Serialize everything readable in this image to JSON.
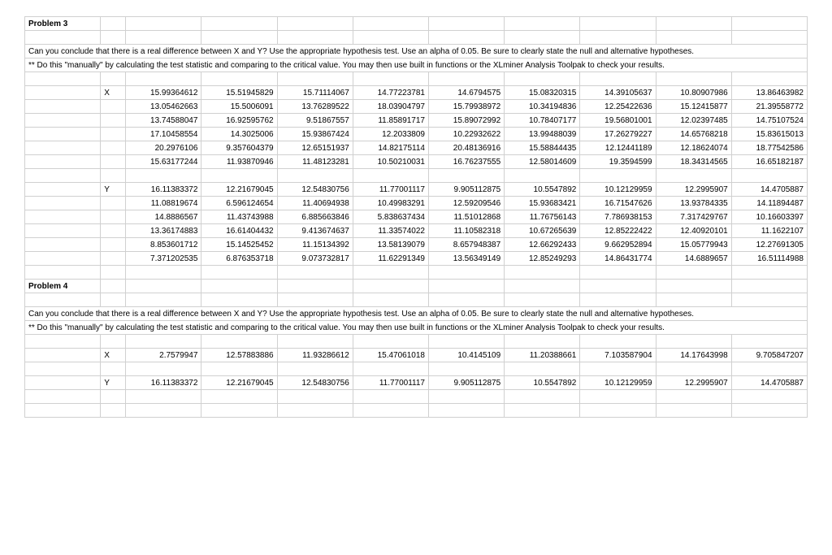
{
  "problem3": {
    "title": "Problem 3",
    "desc1": "Can you conclude that there is a real difference between X and Y? Use the appropriate hypothesis test. Use an alpha of 0.05. Be sure to clearly state the null and alternative hypotheses.",
    "desc2": "** Do this \"manually\" by calculating the test statistic and comparing to the critical value.  You may then use built in functions or the XLminer Analysis Toolpak to check your results.",
    "x_label": "X",
    "x": [
      [
        "15.99364612",
        "15.51945829",
        "15.71114067",
        "14.77223781",
        "14.6794575",
        "15.08320315",
        "14.39105637",
        "10.80907986",
        "13.86463982"
      ],
      [
        "13.05462663",
        "15.5006091",
        "13.76289522",
        "18.03904797",
        "15.79938972",
        "10.34194836",
        "12.25422636",
        "15.12415877",
        "21.39558772"
      ],
      [
        "13.74588047",
        "16.92595762",
        "9.51867557",
        "11.85891717",
        "15.89072992",
        "10.78407177",
        "19.56801001",
        "12.02397485",
        "14.75107524"
      ],
      [
        "17.10458554",
        "14.3025006",
        "15.93867424",
        "12.2033809",
        "10.22932622",
        "13.99488039",
        "17.26279227",
        "14.65768218",
        "15.83615013"
      ],
      [
        "20.2976106",
        "9.357604379",
        "12.65151937",
        "14.82175114",
        "20.48136916",
        "15.58844435",
        "12.12441189",
        "12.18624074",
        "18.77542586"
      ],
      [
        "15.63177244",
        "11.93870946",
        "11.48123281",
        "10.50210031",
        "16.76237555",
        "12.58014609",
        "19.3594599",
        "18.34314565",
        "16.65182187"
      ]
    ],
    "y_label": "Y",
    "y": [
      [
        "16.11383372",
        "12.21679045",
        "12.54830756",
        "11.77001117",
        "9.905112875",
        "10.5547892",
        "10.12129959",
        "12.2995907",
        "14.4705887"
      ],
      [
        "11.08819674",
        "6.596124654",
        "11.40694938",
        "10.49983291",
        "12.59209546",
        "15.93683421",
        "16.71547626",
        "13.93784335",
        "14.11894487"
      ],
      [
        "14.8886567",
        "11.43743988",
        "6.885663846",
        "5.838637434",
        "11.51012868",
        "11.76756143",
        "7.786938153",
        "7.317429767",
        "10.16603397"
      ],
      [
        "13.36174883",
        "16.61404432",
        "9.413674637",
        "11.33574022",
        "11.10582318",
        "10.67265639",
        "12.85222422",
        "12.40920101",
        "11.1622107"
      ],
      [
        "8.853601712",
        "15.14525452",
        "11.15134392",
        "13.58139079",
        "8.657948387",
        "12.66292433",
        "9.662952894",
        "15.05779943",
        "12.27691305"
      ],
      [
        "7.371202535",
        "6.876353718",
        "9.073732817",
        "11.62291349",
        "13.56349149",
        "12.85249293",
        "14.86431774",
        "14.6889657",
        "16.51114988"
      ]
    ]
  },
  "problem4": {
    "title": "Problem 4",
    "desc1": "Can you conclude that there is a real difference between X and Y? Use the appropriate hypothesis test. Use an alpha of 0.05. Be sure to clearly state the null and alternative hypotheses.",
    "desc2": "** Do this \"manually\" by calculating the test statistic and comparing to the critical value.  You may then use built in functions or the XLminer Analysis Toolpak to check your results.",
    "x_label": "X",
    "x": [
      "2.7579947",
      "12.57883886",
      "11.93286612",
      "15.47061018",
      "10.4145109",
      "11.20388661",
      "7.103587904",
      "14.17643998",
      "9.705847207"
    ],
    "y_label": "Y",
    "y": [
      "16.11383372",
      "12.21679045",
      "12.54830756",
      "11.77001117",
      "9.905112875",
      "10.5547892",
      "10.12129959",
      "12.2995907",
      "14.4705887"
    ]
  },
  "style": {
    "border_color": "#d0d0d0",
    "font_size": 10,
    "background": "#ffffff",
    "text_color": "#000000"
  }
}
